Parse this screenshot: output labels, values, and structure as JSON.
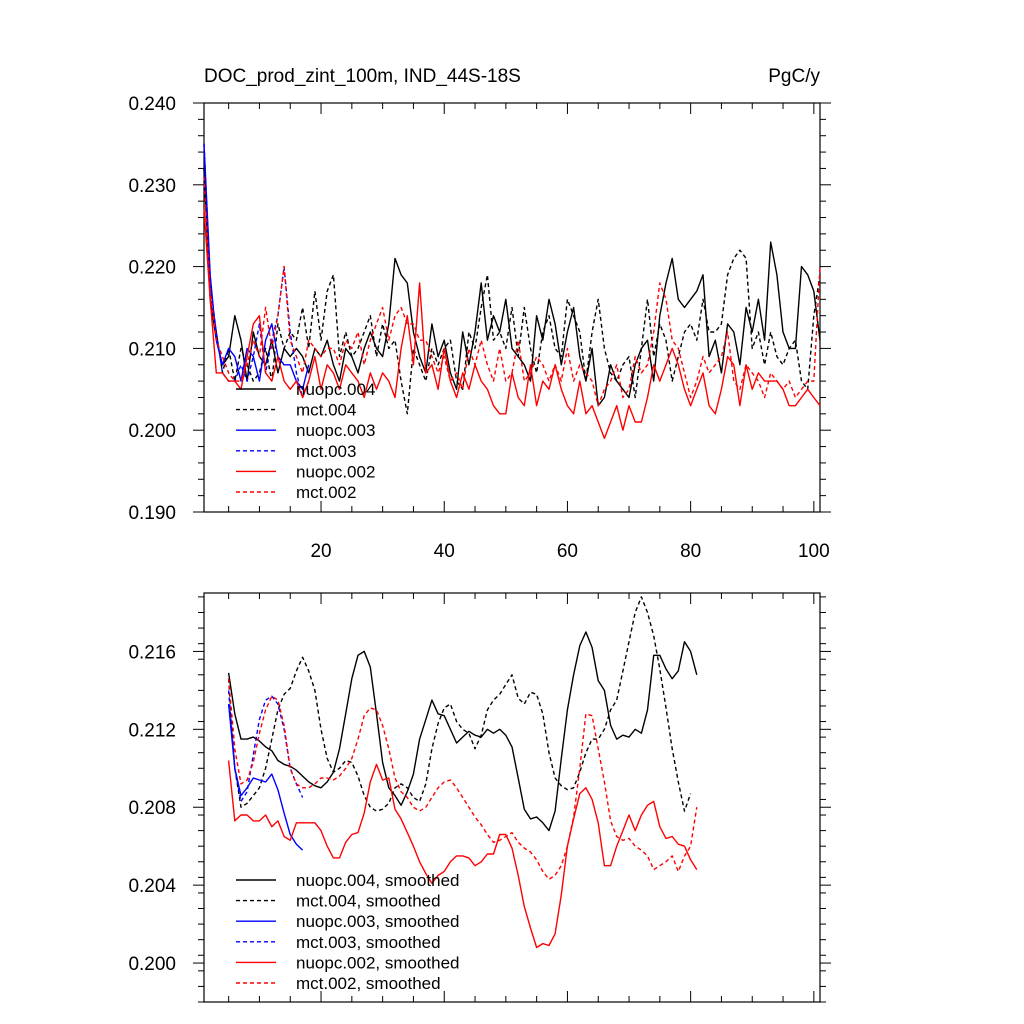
{
  "chart_data": [
    {
      "type": "line",
      "title": "DOC_prod_zint_100m, IND_44S-18S",
      "units": "PgC/y",
      "xlim": [
        1,
        101
      ],
      "ylim": [
        0.19,
        0.24
      ],
      "xticks": [
        20,
        40,
        60,
        80,
        100
      ],
      "xtick_labels": [
        "20",
        "40",
        "60",
        "80",
        "100"
      ],
      "yticks": [
        0.19,
        0.2,
        0.21,
        0.22,
        0.23,
        0.24
      ],
      "ytick_labels": [
        "0.190",
        "0.200",
        "0.210",
        "0.220",
        "0.230",
        "0.240"
      ],
      "legend": [
        "nuopc.004",
        "mct.004",
        "nuopc.003",
        "mct.003",
        "nuopc.002",
        "mct.002"
      ],
      "series": [
        {
          "name": "nuopc.004",
          "color": "#000000",
          "dash": false,
          "x_start": 1,
          "values": [
            0.232,
            0.216,
            0.211,
            0.208,
            0.209,
            0.214,
            0.211,
            0.206,
            0.212,
            0.209,
            0.208,
            0.211,
            0.207,
            0.21,
            0.209,
            0.21,
            0.209,
            0.207,
            0.21,
            0.209,
            0.211,
            0.208,
            0.206,
            0.21,
            0.209,
            0.207,
            0.21,
            0.212,
            0.21,
            0.209,
            0.213,
            0.221,
            0.219,
            0.218,
            0.212,
            0.209,
            0.207,
            0.213,
            0.209,
            0.211,
            0.207,
            0.205,
            0.212,
            0.208,
            0.212,
            0.218,
            0.211,
            0.214,
            0.212,
            0.216,
            0.21,
            0.209,
            0.208,
            0.206,
            0.214,
            0.211,
            0.216,
            0.213,
            0.208,
            0.212,
            0.215,
            0.209,
            0.206,
            0.21,
            0.203,
            0.204,
            0.208,
            0.206,
            0.205,
            0.204,
            0.208,
            0.21,
            0.211,
            0.206,
            0.214,
            0.218,
            0.221,
            0.216,
            0.215,
            0.216,
            0.217,
            0.219,
            0.209,
            0.211,
            0.207,
            0.213,
            0.212,
            0.208,
            0.215,
            0.212,
            0.216,
            0.211,
            0.223,
            0.219,
            0.212,
            0.21,
            0.21,
            0.22,
            0.219,
            0.217,
            0.211
          ]
        },
        {
          "name": "mct.004",
          "color": "#000000",
          "dash": true,
          "x_start": 1,
          "values": [
            0.232,
            0.217,
            0.212,
            0.207,
            0.21,
            0.206,
            0.21,
            0.208,
            0.206,
            0.207,
            0.21,
            0.206,
            0.213,
            0.21,
            0.212,
            0.211,
            0.215,
            0.21,
            0.217,
            0.211,
            0.217,
            0.219,
            0.209,
            0.212,
            0.209,
            0.21,
            0.212,
            0.214,
            0.209,
            0.213,
            0.21,
            0.211,
            0.206,
            0.202,
            0.21,
            0.208,
            0.206,
            0.21,
            0.208,
            0.21,
            0.211,
            0.206,
            0.205,
            0.212,
            0.21,
            0.215,
            0.219,
            0.211,
            0.212,
            0.21,
            0.215,
            0.209,
            0.215,
            0.21,
            0.207,
            0.212,
            0.214,
            0.21,
            0.209,
            0.216,
            0.214,
            0.212,
            0.206,
            0.212,
            0.216,
            0.21,
            0.207,
            0.206,
            0.208,
            0.209,
            0.204,
            0.21,
            0.216,
            0.209,
            0.213,
            0.211,
            0.206,
            0.209,
            0.212,
            0.213,
            0.211,
            0.216,
            0.212,
            0.212,
            0.213,
            0.219,
            0.221,
            0.222,
            0.221,
            0.21,
            0.212,
            0.208,
            0.212,
            0.209,
            0.208,
            0.21,
            0.211,
            0.206,
            0.205,
            0.214,
            0.219
          ]
        },
        {
          "name": "nuopc.003",
          "color": "#0000ff",
          "dash": false,
          "x_start": 1,
          "values": [
            0.235,
            0.219,
            0.211,
            0.208,
            0.21,
            0.209,
            0.206,
            0.21,
            0.209,
            0.206,
            0.211,
            0.213,
            0.209,
            0.208,
            0.208,
            0.206,
            0.205,
            0.208
          ]
        },
        {
          "name": "mct.003",
          "color": "#0000ff",
          "dash": true,
          "x_start": 1,
          "values": [
            0.235,
            0.218,
            0.212,
            0.207,
            0.206,
            0.206,
            0.208,
            0.206,
            0.209,
            0.213,
            0.207,
            0.211,
            0.214,
            0.22,
            0.212,
            0.207,
            0.204,
            0.206
          ]
        },
        {
          "name": "nuopc.002",
          "color": "#ff0000",
          "dash": false,
          "x_start": 1,
          "values": [
            0.227,
            0.216,
            0.207,
            0.207,
            0.206,
            0.206,
            0.205,
            0.209,
            0.213,
            0.214,
            0.207,
            0.206,
            0.209,
            0.206,
            0.205,
            0.206,
            0.204,
            0.206,
            0.209,
            0.205,
            0.208,
            0.207,
            0.205,
            0.208,
            0.207,
            0.206,
            0.204,
            0.207,
            0.205,
            0.207,
            0.206,
            0.204,
            0.21,
            0.214,
            0.208,
            0.218,
            0.207,
            0.208,
            0.205,
            0.21,
            0.206,
            0.204,
            0.207,
            0.205,
            0.208,
            0.206,
            0.205,
            0.203,
            0.202,
            0.202,
            0.207,
            0.204,
            0.203,
            0.208,
            0.203,
            0.206,
            0.205,
            0.208,
            0.205,
            0.203,
            0.202,
            0.206,
            0.202,
            0.203,
            0.201,
            0.199,
            0.201,
            0.203,
            0.2,
            0.203,
            0.201,
            0.201,
            0.204,
            0.208,
            0.206,
            0.208,
            0.21,
            0.208,
            0.205,
            0.203,
            0.205,
            0.207,
            0.203,
            0.202,
            0.205,
            0.209,
            0.208,
            0.203,
            0.208,
            0.205,
            0.207,
            0.206,
            0.206,
            0.206,
            0.205,
            0.203,
            0.203,
            0.204,
            0.205,
            0.204,
            0.203
          ]
        },
        {
          "name": "mct.002",
          "color": "#ff0000",
          "dash": true,
          "x_start": 1,
          "values": [
            0.231,
            0.217,
            0.211,
            0.209,
            0.207,
            0.206,
            0.206,
            0.208,
            0.211,
            0.209,
            0.215,
            0.21,
            0.214,
            0.22,
            0.211,
            0.209,
            0.207,
            0.211,
            0.21,
            0.209,
            0.21,
            0.21,
            0.208,
            0.211,
            0.21,
            0.212,
            0.208,
            0.211,
            0.213,
            0.215,
            0.211,
            0.214,
            0.215,
            0.213,
            0.213,
            0.211,
            0.211,
            0.209,
            0.207,
            0.209,
            0.206,
            0.207,
            0.205,
            0.21,
            0.208,
            0.211,
            0.208,
            0.206,
            0.21,
            0.206,
            0.207,
            0.211,
            0.206,
            0.207,
            0.209,
            0.208,
            0.206,
            0.208,
            0.206,
            0.21,
            0.206,
            0.208,
            0.207,
            0.206,
            0.203,
            0.205,
            0.206,
            0.208,
            0.204,
            0.205,
            0.209,
            0.207,
            0.208,
            0.212,
            0.218,
            0.216,
            0.211,
            0.21,
            0.207,
            0.204,
            0.206,
            0.209,
            0.207,
            0.208,
            0.209,
            0.212,
            0.206,
            0.205,
            0.208,
            0.207,
            0.206,
            0.204,
            0.207,
            0.206,
            0.205,
            0.206,
            0.204,
            0.205,
            0.206,
            0.206,
            0.22
          ]
        }
      ]
    },
    {
      "type": "line",
      "title": "",
      "xlim": [
        1,
        101
      ],
      "ylim": [
        0.198,
        0.219
      ],
      "xticks": [
        20,
        40,
        60,
        80,
        100
      ],
      "yticks": [
        0.2,
        0.204,
        0.208,
        0.212,
        0.216
      ],
      "ytick_labels": [
        "0.200",
        "0.204",
        "0.208",
        "0.212",
        "0.216"
      ],
      "legend": [
        "nuopc.004, smoothed",
        "mct.004, smoothed",
        "nuopc.003, smoothed",
        "mct.003, smoothed",
        "nuopc.002, smoothed",
        "mct.002, smoothed"
      ],
      "series": [
        {
          "name": "nuopc.004, smoothed",
          "color": "#000000",
          "dash": false,
          "x_start": 5,
          "values": [
            0.2149,
            0.2128,
            0.2115,
            0.2115,
            0.2116,
            0.2114,
            0.2111,
            0.2109,
            0.2104,
            0.2102,
            0.2101,
            0.2099,
            0.2096,
            0.2093,
            0.2091,
            0.209,
            0.2093,
            0.2098,
            0.211,
            0.2128,
            0.2146,
            0.2158,
            0.216,
            0.2152,
            0.2128,
            0.2103,
            0.209,
            0.2086,
            0.2081,
            0.2088,
            0.2097,
            0.2115,
            0.2125,
            0.2135,
            0.2128,
            0.2127,
            0.212,
            0.2113,
            0.2116,
            0.2119,
            0.2117,
            0.2116,
            0.212,
            0.2118,
            0.212,
            0.2117,
            0.2111,
            0.2095,
            0.2079,
            0.2074,
            0.2075,
            0.2072,
            0.2068,
            0.2078,
            0.2105,
            0.213,
            0.2148,
            0.2163,
            0.217,
            0.2162,
            0.2145,
            0.214,
            0.2122,
            0.2115,
            0.2117,
            0.2116,
            0.212,
            0.2118,
            0.213,
            0.2158,
            0.2158,
            0.2151,
            0.2146,
            0.215,
            0.2165,
            0.216,
            0.2148
          ]
        },
        {
          "name": "mct.004, smoothed",
          "color": "#000000",
          "dash": true,
          "x_start": 5,
          "values": [
            0.2146,
            0.21,
            0.208,
            0.2082,
            0.2086,
            0.209,
            0.21,
            0.2115,
            0.213,
            0.2138,
            0.2141,
            0.215,
            0.2157,
            0.215,
            0.214,
            0.212,
            0.2105,
            0.2098,
            0.21,
            0.2104,
            0.2103,
            0.2096,
            0.2086,
            0.208,
            0.2078,
            0.2079,
            0.2082,
            0.209,
            0.2092,
            0.209,
            0.2085,
            0.2083,
            0.2092,
            0.211,
            0.2123,
            0.2131,
            0.2133,
            0.2124,
            0.212,
            0.2118,
            0.211,
            0.2117,
            0.213,
            0.2135,
            0.2138,
            0.2143,
            0.2148,
            0.2136,
            0.2133,
            0.2139,
            0.2138,
            0.2128,
            0.2108,
            0.2095,
            0.2091,
            0.2089,
            0.209,
            0.2098,
            0.2108,
            0.2115,
            0.2115,
            0.212,
            0.213,
            0.2135,
            0.215,
            0.2165,
            0.218,
            0.2188,
            0.218,
            0.2168,
            0.2151,
            0.2131,
            0.211,
            0.2093,
            0.2078,
            0.2087
          ]
        },
        {
          "name": "nuopc.003, smoothed",
          "color": "#0000ff",
          "dash": false,
          "x_start": 5,
          "values": [
            0.2133,
            0.21,
            0.2086,
            0.209,
            0.2095,
            0.2094,
            0.2093,
            0.2097,
            0.2089,
            0.2077,
            0.2066,
            0.2061,
            0.2058
          ]
        },
        {
          "name": "mct.003, smoothed",
          "color": "#0000ff",
          "dash": true,
          "x_start": 5,
          "values": [
            0.214,
            0.21,
            0.2083,
            0.2088,
            0.2107,
            0.2125,
            0.2135,
            0.2137,
            0.2133,
            0.212,
            0.21,
            0.2092,
            0.2085
          ]
        },
        {
          "name": "nuopc.002, smoothed",
          "color": "#ff0000",
          "dash": false,
          "x_start": 5,
          "values": [
            0.2104,
            0.2073,
            0.2076,
            0.2076,
            0.2073,
            0.2073,
            0.2076,
            0.207,
            0.2073,
            0.2065,
            0.2063,
            0.2072,
            0.2072,
            0.2072,
            0.2072,
            0.2068,
            0.206,
            0.2054,
            0.2054,
            0.2062,
            0.2066,
            0.2067,
            0.2077,
            0.2093,
            0.2102,
            0.2094,
            0.2095,
            0.2079,
            0.2074,
            0.2067,
            0.206,
            0.2052,
            0.2046,
            0.2041,
            0.2045,
            0.2047,
            0.2052,
            0.2055,
            0.2055,
            0.2054,
            0.205,
            0.2052,
            0.2056,
            0.2056,
            0.2066,
            0.2066,
            0.2059,
            0.2045,
            0.2029,
            0.2018,
            0.2008,
            0.201,
            0.2009,
            0.2015,
            0.2035,
            0.206,
            0.2074,
            0.2087,
            0.209,
            0.2084,
            0.2072,
            0.205,
            0.205,
            0.206,
            0.2068,
            0.2076,
            0.2068,
            0.2076,
            0.2081,
            0.2083,
            0.207,
            0.2064,
            0.2065,
            0.2061,
            0.206,
            0.2053,
            0.2048
          ]
        },
        {
          "name": "mct.002, smoothed",
          "color": "#ff0000",
          "dash": true,
          "x_start": 5,
          "values": [
            0.2146,
            0.211,
            0.2092,
            0.2094,
            0.2103,
            0.2118,
            0.213,
            0.2137,
            0.2135,
            0.2122,
            0.21,
            0.2092,
            0.209,
            0.209,
            0.2092,
            0.2095,
            0.2095,
            0.2094,
            0.2096,
            0.21,
            0.2105,
            0.2115,
            0.2127,
            0.2131,
            0.213,
            0.2122,
            0.211,
            0.2095,
            0.2088,
            0.2085,
            0.208,
            0.2078,
            0.208,
            0.2085,
            0.209,
            0.2093,
            0.2094,
            0.209,
            0.2085,
            0.208,
            0.2075,
            0.2071,
            0.2066,
            0.2062,
            0.2063,
            0.2065,
            0.2067,
            0.2062,
            0.2059,
            0.2057,
            0.2053,
            0.2047,
            0.2043,
            0.2045,
            0.205,
            0.206,
            0.2075,
            0.21,
            0.2128,
            0.2127,
            0.211,
            0.2093,
            0.2073,
            0.2065,
            0.2063,
            0.2064,
            0.206,
            0.2058,
            0.2055,
            0.2048,
            0.205,
            0.2052,
            0.2055,
            0.2047,
            0.2055,
            0.206,
            0.208
          ]
        }
      ]
    }
  ]
}
